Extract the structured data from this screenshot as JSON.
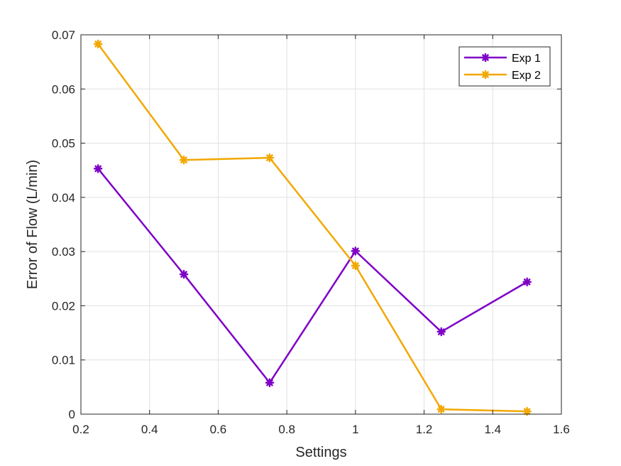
{
  "chart_data": {
    "type": "line",
    "xlabel": "Settings",
    "ylabel": "Error of Flow (L/min)",
    "xlim": [
      0.2,
      1.6
    ],
    "ylim": [
      0,
      0.07
    ],
    "xticks": [
      "0.2",
      "0.4",
      "0.6",
      "0.8",
      "1",
      "1.2",
      "1.4",
      "1.6"
    ],
    "yticks": [
      "0",
      "0.01",
      "0.02",
      "0.03",
      "0.04",
      "0.05",
      "0.06",
      "0.07"
    ],
    "xtick_values": [
      0.2,
      0.4,
      0.6,
      0.8,
      1.0,
      1.2,
      1.4,
      1.6
    ],
    "ytick_values": [
      0,
      0.01,
      0.02,
      0.03,
      0.04,
      0.05,
      0.06,
      0.07
    ],
    "grid": true,
    "legend_position": "top-right",
    "x": [
      0.25,
      0.5,
      0.75,
      1.0,
      1.25,
      1.5
    ],
    "series": [
      {
        "name": "Exp 1",
        "color": "#7E00C6",
        "marker": "asterisk",
        "values": [
          0.0453,
          0.0258,
          0.0058,
          0.0301,
          0.0152,
          0.0244
        ]
      },
      {
        "name": "Exp 2",
        "color": "#F2A800",
        "marker": "asterisk",
        "values": [
          0.0683,
          0.0469,
          0.0473,
          0.0274,
          0.0009,
          0.0005
        ]
      }
    ]
  }
}
